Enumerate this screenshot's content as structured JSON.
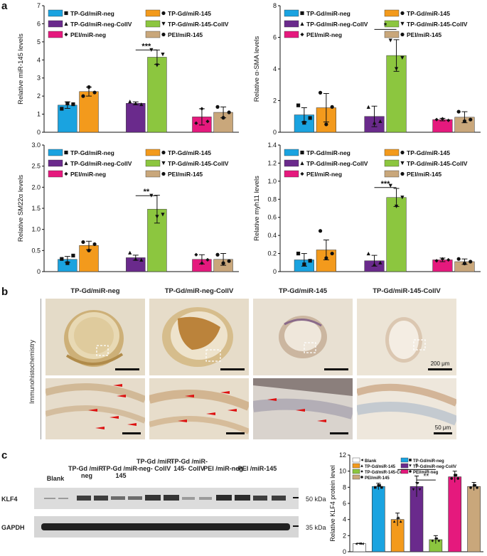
{
  "panels": {
    "a": "a",
    "b": "b",
    "c": "c"
  },
  "colors": {
    "tp_gd_mir_neg": "#1aa3e0",
    "tp_gd_mir_145": "#f39a1c",
    "tp_gd_mir_neg_collv": "#6a2a8c",
    "tp_gd_mir_145_collv": "#8cc63f",
    "pei_mir_neg": "#e5197d",
    "pei_mir_145": "#c9a77b",
    "blank": "#ffffff"
  },
  "legend_a": [
    {
      "label": "TP-Gd/miR-neg",
      "color": "#1aa3e0",
      "marker": "square"
    },
    {
      "label": "TP-Gd/miR-145",
      "color": "#f39a1c",
      "marker": "circle"
    },
    {
      "label": "TP-Gd/miR-neg-CollV",
      "color": "#6a2a8c",
      "marker": "triangle"
    },
    {
      "label": "TP-Gd/miR-145-CollV",
      "color": "#8cc63f",
      "marker": "triangle-down"
    },
    {
      "label": "PEI/miR-neg",
      "color": "#e5197d",
      "marker": "diamond"
    },
    {
      "label": "PEI/miR-145",
      "color": "#c9a77b",
      "marker": "circle"
    }
  ],
  "chart_data": [
    {
      "type": "bar",
      "ylabel": "Relative miR-145 levels",
      "ylim": [
        0,
        7
      ],
      "yticks": [
        "0",
        "1",
        "2",
        "3",
        "4",
        "5",
        "6",
        "7"
      ],
      "values": [
        1.5,
        2.25,
        1.6,
        4.15,
        0.85,
        1.1
      ],
      "errors": [
        0.18,
        0.25,
        0.08,
        0.4,
        0.45,
        0.3
      ],
      "points": [
        [
          1.3,
          1.6,
          1.55
        ],
        [
          2.0,
          2.5,
          2.2
        ],
        [
          1.7,
          1.6,
          1.55
        ],
        [
          4.55,
          3.7,
          4.3
        ],
        [
          0.5,
          1.3,
          0.6
        ],
        [
          1.4,
          0.8,
          1.1
        ]
      ],
      "significance": "***",
      "sig_y": 4.55
    },
    {
      "type": "bar",
      "ylabel": "Relative α-SMA levels",
      "ylim": [
        0,
        8
      ],
      "yticks": [
        "0",
        "2",
        "4",
        "6",
        "8"
      ],
      "values": [
        1.1,
        1.55,
        1.0,
        4.85,
        0.8,
        0.95
      ],
      "errors": [
        0.45,
        0.9,
        0.65,
        1.0,
        0.08,
        0.35
      ],
      "points": [
        [
          1.7,
          0.6,
          0.9
        ],
        [
          2.5,
          0.5,
          1.6
        ],
        [
          1.6,
          0.6,
          0.7
        ],
        [
          5.8,
          4.0,
          4.7
        ],
        [
          0.8,
          0.85,
          0.75
        ],
        [
          1.3,
          0.7,
          0.8
        ]
      ],
      "significance": "*",
      "sig_y": 6.5
    },
    {
      "type": "bar",
      "ylabel": "Relative SM22α levels",
      "ylim": [
        0,
        3
      ],
      "yticks": [
        "0",
        "0.5",
        "1.0",
        "1.5",
        "2.0",
        "2.5",
        "3.0"
      ],
      "values": [
        0.29,
        0.62,
        0.33,
        1.48,
        0.29,
        0.29
      ],
      "errors": [
        0.07,
        0.1,
        0.06,
        0.33,
        0.11,
        0.14
      ],
      "points": [
        [
          0.3,
          0.2,
          0.38
        ],
        [
          0.7,
          0.5,
          0.65
        ],
        [
          0.45,
          0.3,
          0.28
        ],
        [
          1.8,
          1.3,
          1.35
        ],
        [
          0.4,
          0.2,
          0.28
        ],
        [
          0.4,
          0.2,
          0.25
        ]
      ],
      "significance": "**",
      "sig_y": 1.8
    },
    {
      "type": "bar",
      "ylabel": "Relative myh11 levels",
      "ylim": [
        0,
        1.4
      ],
      "yticks": [
        "0",
        "0.2",
        "0.4",
        "0.6",
        "0.8",
        "1.0",
        "1.2",
        "1.4"
      ],
      "values": [
        0.13,
        0.24,
        0.12,
        0.82,
        0.13,
        0.11
      ],
      "errors": [
        0.07,
        0.11,
        0.06,
        0.1,
        0.02,
        0.03
      ],
      "points": [
        [
          0.2,
          0.08,
          0.12
        ],
        [
          0.45,
          0.15,
          0.2
        ],
        [
          0.2,
          0.08,
          0.1
        ],
        [
          0.95,
          0.72,
          0.82
        ],
        [
          0.12,
          0.14,
          0.13
        ],
        [
          0.14,
          0.09,
          0.11
        ]
      ],
      "significance": "***",
      "sig_y": 0.93
    }
  ],
  "ihc": {
    "titles": [
      "TP-Gd/miR-neg",
      "TP-Gd/miR-neg-CollV",
      "TP-Gd/miR-145",
      "TP-Gd/miR-145-CollV"
    ],
    "side_label": "Immunohistochemistry",
    "scale_top": "200 μm",
    "scale_bottom": "50 μm"
  },
  "blot": {
    "lanes": [
      "Blank",
      "TP-Gd /miR-neg",
      "TP-Gd /miR-145",
      "TP-Gd /miR-neg- CollV",
      "TP-Gd /miR-145- CollV",
      "PEI /miR-neg",
      "PEI /miR-145"
    ],
    "rows": [
      "KLF4",
      "GAPDH"
    ],
    "sizes": [
      "50 kDa",
      "35 kDa"
    ]
  },
  "chart_c": {
    "type": "bar",
    "ylabel": "Relative KLF4 protein level",
    "ylim": [
      0,
      12
    ],
    "yticks": [
      "0",
      "2",
      "4",
      "6",
      "8",
      "10",
      "12"
    ],
    "legend": [
      {
        "label": "Blank",
        "color": "#ffffff",
        "marker": "triangle-left"
      },
      {
        "label": "TP-Gd/miR-neg",
        "color": "#1aa3e0",
        "marker": "square"
      },
      {
        "label": "TP-Gd/miR-145",
        "color": "#f39a1c",
        "marker": "triangle"
      },
      {
        "label": "TP-Gd/miR-neg-CollV",
        "color": "#6a2a8c",
        "marker": "triangle-down"
      },
      {
        "label": "TP-Gd/miR-145-CollV",
        "color": "#8cc63f",
        "marker": "diamond"
      },
      {
        "label": "PEI/miR-neg",
        "color": "#e5197d",
        "marker": "circle"
      },
      {
        "label": "PEI/miR-145",
        "color": "#c9a77b",
        "marker": "circle"
      }
    ],
    "values": [
      1.0,
      8.1,
      4.0,
      8.1,
      1.5,
      9.3,
      8.1
    ],
    "errors": [
      0.05,
      0.4,
      0.8,
      1.3,
      0.5,
      0.7,
      0.5
    ],
    "sig": [
      "*",
      "**"
    ]
  }
}
